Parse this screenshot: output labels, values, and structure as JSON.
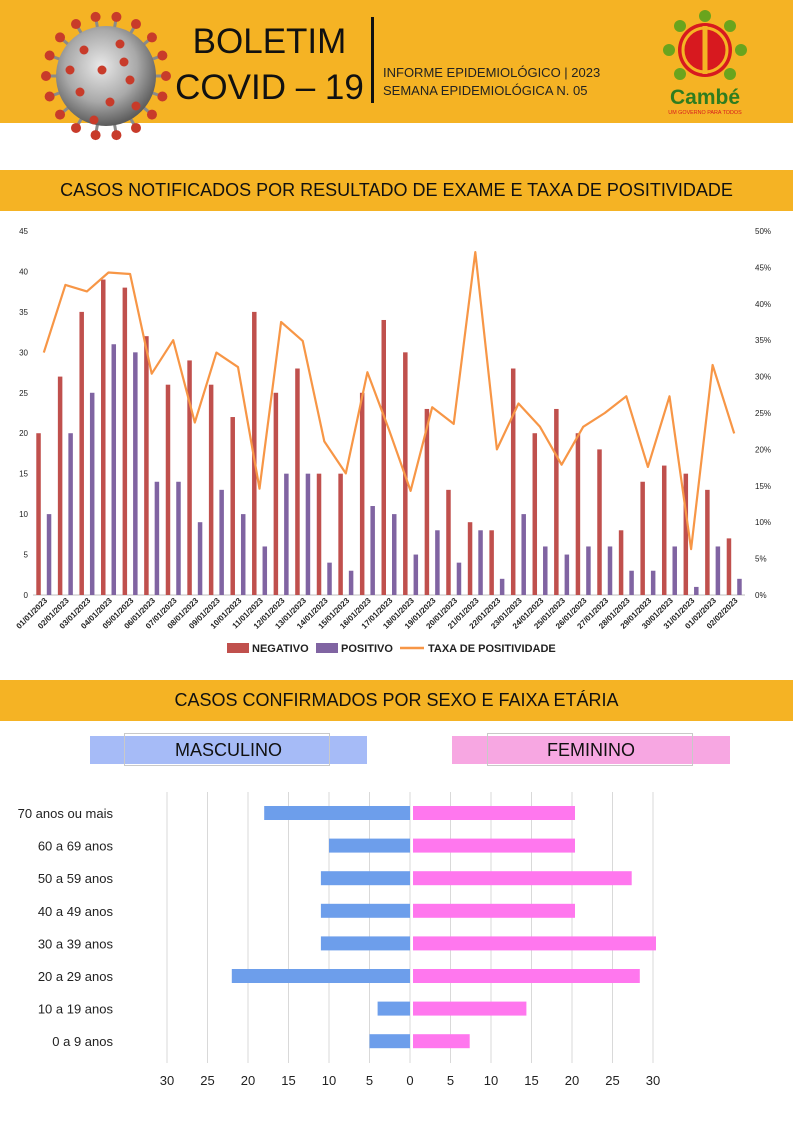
{
  "header": {
    "title_line1": "BOLETIM",
    "title_line2": "COVID – 19",
    "info_line1": "INFORME EPIDEMIOLÓGICO | 2023",
    "info_line2": "SEMANA EPIDEMIOLÓGICA  N. 05",
    "logo_text": "Cambé",
    "logo_tagline": "UM GOVERNO PARA TODOS",
    "colors": {
      "band": "#f5b324",
      "logo_red": "#d7191f",
      "logo_green": "#6aa41d"
    },
    "icons": [
      "coronavirus-image",
      "cambe-logo"
    ]
  },
  "section1": {
    "title": "CASOS NOTIFICADOS POR RESULTADO DE EXAME E TAXA DE POSITIVIDADE"
  },
  "section2": {
    "title": "CASOS CONFIRMADOS POR SEXO E FAIXA ETÁRIA",
    "male_label": "MASCULINO",
    "female_label": "FEMININO"
  },
  "chart_data": [
    {
      "type": "bar",
      "categories": [
        "01/01/2023",
        "02/01/2023",
        "03/01/2023",
        "04/01/2023",
        "05/01/2023",
        "06/01/2023",
        "07/01/2023",
        "08/01/2023",
        "09/01/2023",
        "10/01/2023",
        "11/01/2023",
        "12/01/2023",
        "13/01/2023",
        "14/01/2023",
        "15/01/2023",
        "16/01/2023",
        "17/01/2023",
        "18/01/2023",
        "19/01/2023",
        "20/01/2023",
        "21/01/2023",
        "22/01/2023",
        "23/01/2023",
        "24/01/2023",
        "25/01/2023",
        "26/01/2023",
        "27/01/2023",
        "28/01/2023",
        "29/01/2023",
        "30/01/2023",
        "31/01/2023",
        "01/02/2023",
        "02/02/2023"
      ],
      "series": [
        {
          "name": "NEGATIVO",
          "color": "#c0504d",
          "values": [
            20,
            27,
            35,
            39,
            38,
            32,
            26,
            29,
            26,
            22,
            35,
            25,
            28,
            15,
            15,
            25,
            34,
            30,
            23,
            13,
            9,
            8,
            28,
            20,
            23,
            20,
            18,
            8,
            14,
            16,
            15,
            13,
            7
          ]
        },
        {
          "name": "POSITIVO",
          "color": "#8064a2",
          "values": [
            10,
            20,
            25,
            31,
            30,
            14,
            14,
            9,
            13,
            10,
            6,
            15,
            15,
            4,
            3,
            11,
            10,
            5,
            8,
            4,
            8,
            2,
            10,
            6,
            5,
            6,
            6,
            3,
            3,
            6,
            1,
            6,
            2
          ]
        },
        {
          "name": "TAXA DE POSITIVIDADE",
          "type": "line",
          "axis": "right",
          "color": "#f79646",
          "values": [
            0.333,
            0.426,
            0.417,
            0.443,
            0.441,
            0.304,
            0.35,
            0.237,
            0.333,
            0.313,
            0.146,
            0.375,
            0.349,
            0.211,
            0.167,
            0.306,
            0.227,
            0.143,
            0.258,
            0.235,
            0.471,
            0.2,
            0.263,
            0.231,
            0.179,
            0.231,
            0.25,
            0.273,
            0.176,
            0.273,
            0.063,
            0.316,
            0.222
          ]
        }
      ],
      "ylim": [
        0,
        45
      ],
      "yticks": [
        0,
        5,
        10,
        15,
        20,
        25,
        30,
        35,
        40,
        45
      ],
      "y2lim": [
        0,
        0.5
      ],
      "y2ticks": [
        "0%",
        "5%",
        "10%",
        "15%",
        "20%",
        "25%",
        "30%",
        "35%",
        "40%",
        "45%",
        "50%"
      ],
      "legend_position": "bottom"
    },
    {
      "type": "bar",
      "orientation": "horizontal",
      "categories": [
        "70 anos ou mais",
        "60 a 69 anos",
        "50 a 59 anos",
        "40 a 49 anos",
        "30 a 39 anos",
        "20 a 29 anos",
        "10 a 19 anos",
        "0 a 9 anos"
      ],
      "series": [
        {
          "name": "MASCULINO",
          "color": "#6d9eeb",
          "values": [
            18,
            10,
            11,
            11,
            11,
            22,
            4,
            5
          ]
        },
        {
          "name": "FEMININO",
          "color": "#ff77ee",
          "values": [
            20,
            20,
            27,
            20,
            30,
            28,
            14,
            7
          ]
        }
      ],
      "xlim": [
        -30,
        30
      ],
      "xticks": [
        "30",
        "25",
        "20",
        "15",
        "10",
        "5",
        "0",
        "5",
        "10",
        "15",
        "20",
        "25",
        "30"
      ],
      "grid": "vertical"
    }
  ]
}
